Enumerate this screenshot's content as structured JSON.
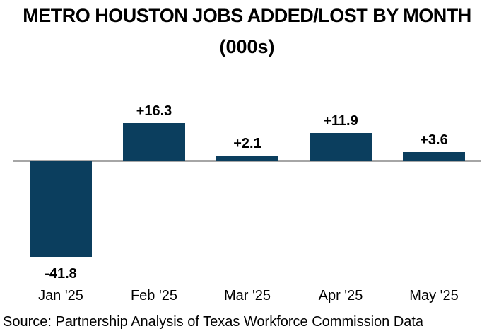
{
  "header": {
    "title": "METRO HOUSTON JOBS ADDED/LOST BY MONTH",
    "subtitle": "(000s)"
  },
  "footer": {
    "source": "Source: Partnership Analysis of Texas Workforce Commission Data"
  },
  "colors": {
    "bar": "#0b3e5e",
    "baseline": "#a6a6a6",
    "text": "#000000",
    "background": "#ffffff"
  },
  "chart_data": {
    "type": "bar",
    "title": "METRO HOUSTON JOBS ADDED/LOST BY MONTH (000s)",
    "categories": [
      "Jan '25",
      "Feb '25",
      "Mar '25",
      "Apr '25",
      "May '25"
    ],
    "values": [
      -41.8,
      16.3,
      2.1,
      11.9,
      3.6
    ],
    "data_labels": [
      "-41.8",
      "+16.3",
      "+2.1",
      "+11.9",
      "+3.6"
    ],
    "xlabel": "",
    "ylabel": "",
    "ylim": [
      -45,
      20
    ],
    "grid": false,
    "legend": false,
    "bar_color": "#0b3e5e",
    "baseline_color": "#a6a6a6"
  }
}
